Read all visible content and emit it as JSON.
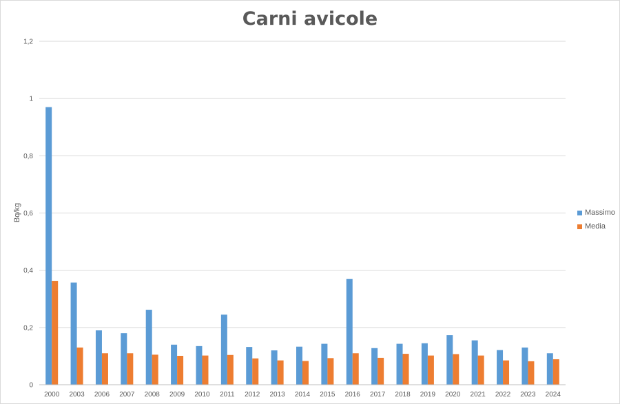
{
  "chart_data": {
    "type": "bar",
    "title": "Carni avicole",
    "xlabel": "",
    "ylabel": "Bq/kg",
    "ylim": [
      0,
      1.2
    ],
    "yticks": [
      "0",
      "0,2",
      "0,4",
      "0,6",
      "0,8",
      "1",
      "1,2"
    ],
    "grid": true,
    "legend_position": "right",
    "categories": [
      "2000",
      "2003",
      "2006",
      "2007",
      "2008",
      "2009",
      "2010",
      "2011",
      "2012",
      "2013",
      "2014",
      "2015",
      "2016",
      "2017",
      "2018",
      "2019",
      "2020",
      "2021",
      "2022",
      "2023",
      "2024"
    ],
    "series": [
      {
        "name": "Massimo",
        "color": "#5b9bd5",
        "values": [
          0.97,
          0.357,
          0.19,
          0.18,
          0.262,
          0.14,
          0.135,
          0.245,
          0.132,
          0.12,
          0.133,
          0.143,
          0.37,
          0.128,
          0.143,
          0.145,
          0.173,
          0.155,
          0.121,
          0.13,
          0.11
        ]
      },
      {
        "name": "Media",
        "color": "#ed7d31",
        "values": [
          0.363,
          0.13,
          0.11,
          0.11,
          0.105,
          0.101,
          0.102,
          0.104,
          0.092,
          0.085,
          0.083,
          0.093,
          0.11,
          0.094,
          0.108,
          0.102,
          0.107,
          0.102,
          0.085,
          0.082,
          0.089
        ]
      }
    ]
  }
}
